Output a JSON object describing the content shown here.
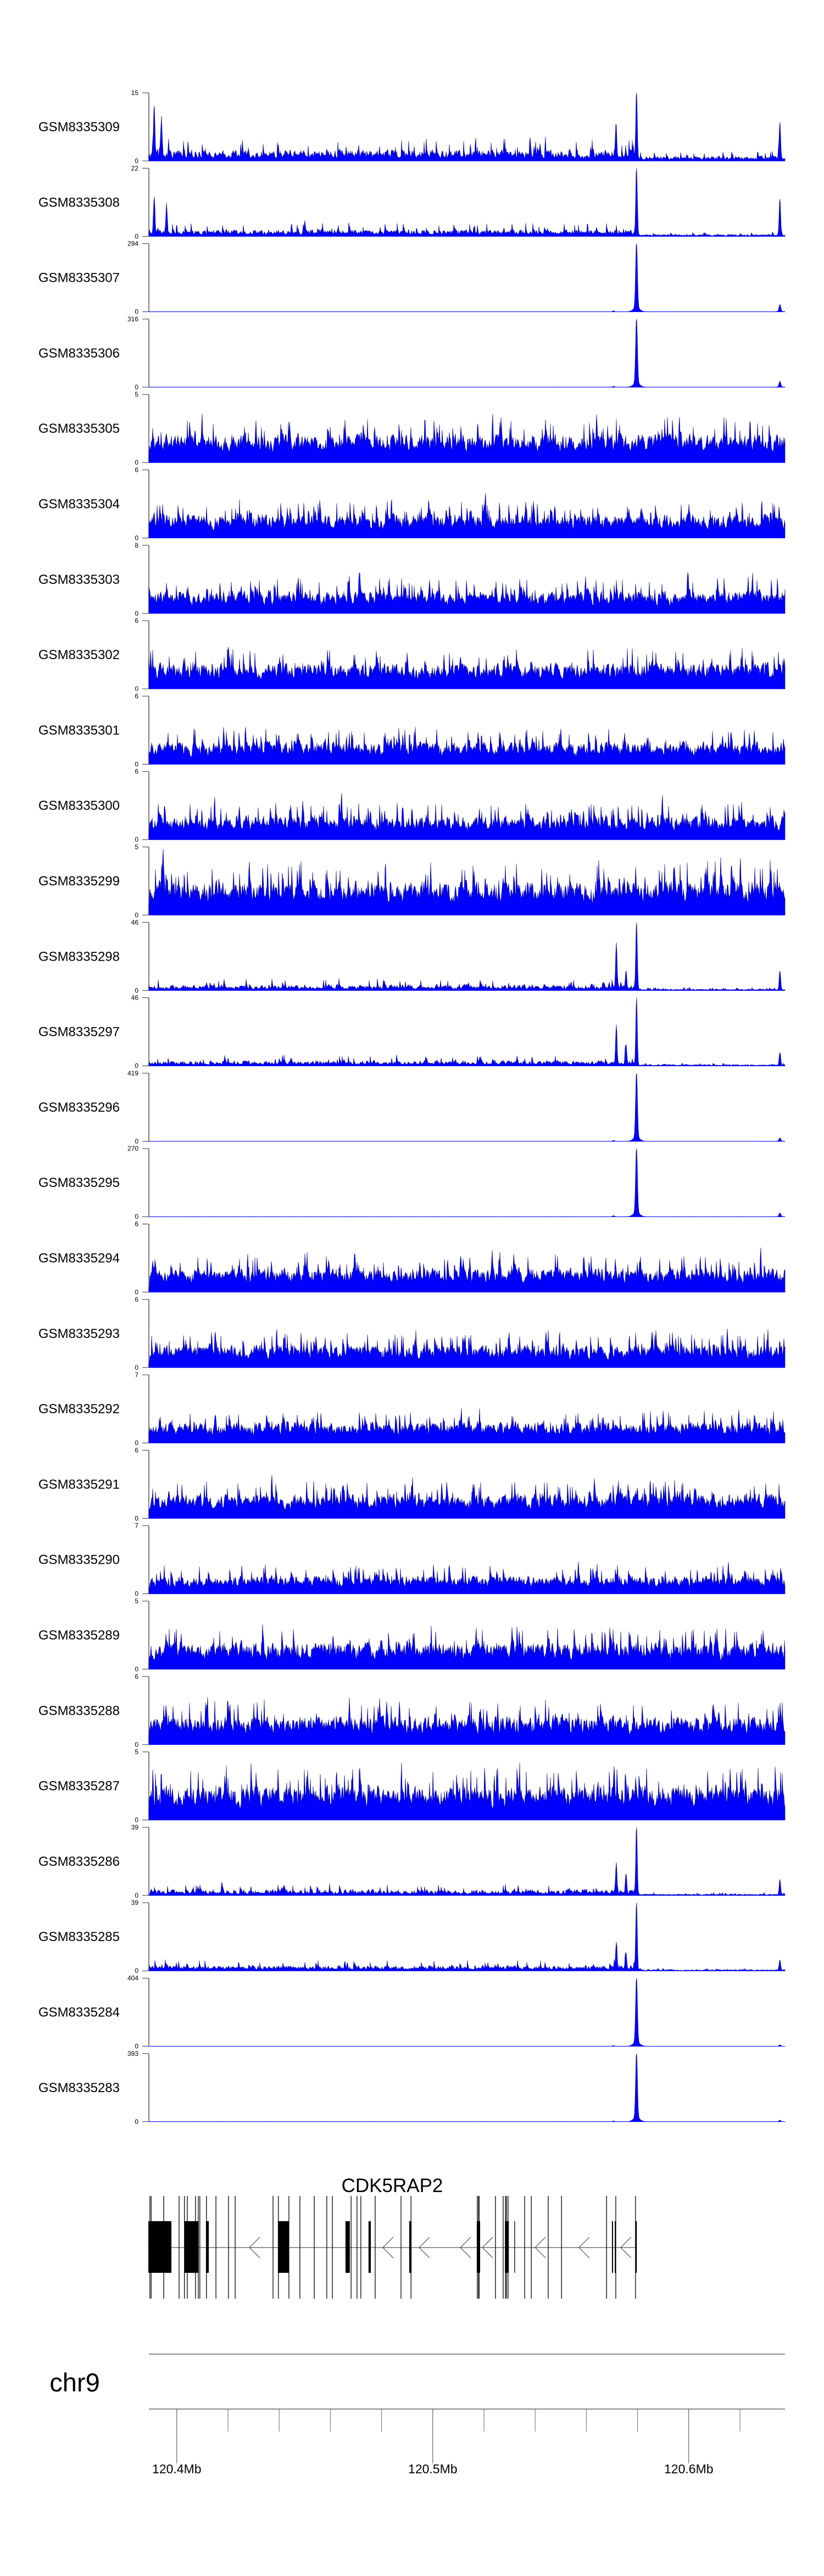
{
  "chart_data": {
    "type": "area",
    "title": "",
    "xlabel": "",
    "xlim_kb": [
      120389.1,
      120637.6
    ],
    "colors": {
      "fill": "#0000ff",
      "stroke": "#00008b",
      "axis": "#808080",
      "gene": "#000000"
    },
    "tracks": [
      {
        "name": "GSM8335309",
        "ylim": [
          0,
          15
        ],
        "profile": "promoter",
        "background": 2.2,
        "background_after_tss": 1.0,
        "peaks": [
          [
            120579.6,
            15
          ],
          [
            120391.2,
            11
          ],
          [
            120394.0,
            8
          ],
          [
            120571.6,
            7.5
          ],
          [
            120635.6,
            8
          ]
        ]
      },
      {
        "name": "GSM8335308",
        "ylim": [
          0,
          22
        ],
        "profile": "promoter",
        "background": 2.0,
        "background_after_tss": 0.6,
        "peaks": [
          [
            120579.6,
            22
          ],
          [
            120391.2,
            12
          ],
          [
            120396.0,
            9
          ],
          [
            120635.6,
            12
          ]
        ]
      },
      {
        "name": "GSM8335307",
        "ylim": [
          0,
          294
        ],
        "profile": "sharp",
        "background": 0.4,
        "background_after_tss": 0.3,
        "peaks": [
          [
            120579.6,
            294
          ],
          [
            120570.6,
            4
          ],
          [
            120635.6,
            30
          ]
        ]
      },
      {
        "name": "GSM8335306",
        "ylim": [
          0,
          316
        ],
        "profile": "sharp",
        "background": 0.4,
        "background_after_tss": 0.3,
        "peaks": [
          [
            120579.6,
            316
          ],
          [
            120570.6,
            4
          ],
          [
            120635.6,
            26
          ]
        ]
      },
      {
        "name": "GSM8335305",
        "ylim": [
          0,
          5
        ],
        "profile": "dense",
        "background": 1.6,
        "background_after_tss": 1.6,
        "peaks": []
      },
      {
        "name": "GSM8335304",
        "ylim": [
          0,
          6
        ],
        "profile": "dense",
        "background": 1.6,
        "background_after_tss": 1.6,
        "peaks": []
      },
      {
        "name": "GSM8335303",
        "ylim": [
          0,
          8
        ],
        "profile": "dense",
        "background": 2.0,
        "background_after_tss": 2.0,
        "peaks": []
      },
      {
        "name": "GSM8335302",
        "ylim": [
          0,
          6
        ],
        "profile": "dense",
        "background": 1.7,
        "background_after_tss": 1.7,
        "peaks": []
      },
      {
        "name": "GSM8335301",
        "ylim": [
          0,
          6
        ],
        "profile": "dense",
        "background": 1.5,
        "background_after_tss": 1.5,
        "peaks": []
      },
      {
        "name": "GSM8335300",
        "ylim": [
          0,
          6
        ],
        "profile": "dense",
        "background": 1.6,
        "background_after_tss": 1.6,
        "peaks": []
      },
      {
        "name": "GSM8335299",
        "ylim": [
          0,
          5
        ],
        "profile": "dense",
        "background": 1.9,
        "background_after_tss": 1.9,
        "peaks": []
      },
      {
        "name": "GSM8335298",
        "ylim": [
          0,
          46
        ],
        "profile": "promoter",
        "background": 3.5,
        "background_after_tss": 1.0,
        "peaks": [
          [
            120579.6,
            46
          ],
          [
            120571.7,
            31
          ],
          [
            120575.5,
            12
          ],
          [
            120635.6,
            12
          ]
        ]
      },
      {
        "name": "GSM8335297",
        "ylim": [
          0,
          46
        ],
        "profile": "promoter",
        "background": 3.2,
        "background_after_tss": 0.9,
        "peaks": [
          [
            120579.6,
            46
          ],
          [
            120571.7,
            26
          ],
          [
            120575.5,
            12
          ],
          [
            120635.6,
            9
          ]
        ]
      },
      {
        "name": "GSM8335296",
        "ylim": [
          0,
          419
        ],
        "profile": "sharp",
        "background": 0.5,
        "background_after_tss": 0.3,
        "peaks": [
          [
            120579.6,
            419
          ],
          [
            120570.6,
            5
          ],
          [
            120635.6,
            20
          ]
        ]
      },
      {
        "name": "GSM8335295",
        "ylim": [
          0,
          270
        ],
        "profile": "sharp",
        "background": 0.4,
        "background_after_tss": 0.3,
        "peaks": [
          [
            120579.6,
            270
          ],
          [
            120570.6,
            4
          ],
          [
            120635.6,
            14
          ]
        ]
      },
      {
        "name": "GSM8335294",
        "ylim": [
          0,
          6
        ],
        "profile": "dense",
        "background": 1.6,
        "background_after_tss": 1.6,
        "peaks": []
      },
      {
        "name": "GSM8335293",
        "ylim": [
          0,
          6
        ],
        "profile": "dense",
        "background": 1.5,
        "background_after_tss": 1.5,
        "peaks": []
      },
      {
        "name": "GSM8335292",
        "ylim": [
          0,
          7
        ],
        "profile": "dense",
        "background": 1.6,
        "background_after_tss": 1.6,
        "peaks": []
      },
      {
        "name": "GSM8335291",
        "ylim": [
          0,
          6
        ],
        "profile": "dense",
        "background": 1.6,
        "background_after_tss": 1.6,
        "peaks": []
      },
      {
        "name": "GSM8335290",
        "ylim": [
          0,
          7
        ],
        "profile": "dense",
        "background": 1.4,
        "background_after_tss": 1.4,
        "peaks": []
      },
      {
        "name": "GSM8335289",
        "ylim": [
          0,
          5
        ],
        "profile": "dense",
        "background": 1.5,
        "background_after_tss": 1.5,
        "peaks": []
      },
      {
        "name": "GSM8335288",
        "ylim": [
          0,
          6
        ],
        "profile": "dense",
        "background": 1.9,
        "background_after_tss": 1.9,
        "peaks": []
      },
      {
        "name": "GSM8335287",
        "ylim": [
          0,
          5
        ],
        "profile": "dense",
        "background": 1.9,
        "background_after_tss": 1.9,
        "peaks": []
      },
      {
        "name": "GSM8335286",
        "ylim": [
          0,
          39
        ],
        "profile": "promoter",
        "background": 3.0,
        "background_after_tss": 0.8,
        "peaks": [
          [
            120579.6,
            39
          ],
          [
            120571.7,
            18
          ],
          [
            120575.5,
            10
          ],
          [
            120635.6,
            9
          ]
        ]
      },
      {
        "name": "GSM8335285",
        "ylim": [
          0,
          39
        ],
        "profile": "promoter",
        "background": 2.8,
        "background_after_tss": 0.7,
        "peaks": [
          [
            120579.6,
            39
          ],
          [
            120571.7,
            14
          ],
          [
            120575.5,
            8
          ],
          [
            120635.6,
            6
          ]
        ]
      },
      {
        "name": "GSM8335284",
        "ylim": [
          0,
          404
        ],
        "profile": "sharp",
        "background": 0.4,
        "background_after_tss": 0.3,
        "peaks": [
          [
            120579.6,
            404
          ],
          [
            120570.6,
            4
          ],
          [
            120635.6,
            8
          ]
        ]
      },
      {
        "name": "GSM8335283",
        "ylim": [
          0,
          393
        ],
        "profile": "sharp",
        "background": 0.4,
        "background_after_tss": 0.3,
        "peaks": [
          [
            120579.6,
            393
          ],
          [
            120570.6,
            4
          ],
          [
            120635.6,
            8
          ]
        ]
      }
    ],
    "gene": {
      "name": "CDK5RAP2",
      "strand": "-",
      "start_kb": 120388.9,
      "end_kb": 120579.7,
      "exons_kb": [
        [
          120388.9,
          120397.9
        ],
        [
          120403.0,
          120408.6
        ],
        [
          120411.4,
          120412.5
        ],
        [
          120439.5,
          120443.8
        ],
        [
          120465.9,
          120467.6
        ],
        [
          120474.9,
          120475.8
        ],
        [
          120490.8,
          120491.7
        ],
        [
          120517.2,
          120518.5
        ],
        [
          120528.2,
          120529.7
        ],
        [
          120570.0,
          120570.4
        ],
        [
          120571.1,
          120571.5
        ],
        [
          120579.2,
          120579.7
        ]
      ],
      "short_marks_kb": [
        120532.0
      ],
      "full_height_marks_kb": [
        120389.5,
        120390.0,
        120394.9,
        120400.9,
        120403.0,
        120404.1,
        120407.3,
        120408.4,
        120409.0,
        120411.6,
        120415.3,
        120420.2,
        120422.8,
        120437.6,
        120439.7,
        120443.8,
        120448.1,
        120453.7,
        120458.6,
        120460.8,
        120468.1,
        120470.4,
        120471.9,
        120477.5,
        120487.6,
        120491.5,
        120517.4,
        120517.9,
        120518.1,
        120524.5,
        120527.5,
        120528.4,
        120528.8,
        120529.4,
        120535.9,
        120538.5,
        120545.1,
        120550.3,
        120567.9,
        120571.5,
        120579.2
      ],
      "direction_arrows_kb": [
        120428.4,
        120480.5,
        120494.7,
        120510.8,
        120519.4,
        120540.0,
        120557.1,
        120573.4
      ]
    },
    "axis": {
      "chromosome": "chr9",
      "major_ticks": [
        {
          "pos_kb": 120400,
          "label": "120.4Mb"
        },
        {
          "pos_kb": 120500,
          "label": "120.5Mb"
        },
        {
          "pos_kb": 120600,
          "label": "120.6Mb"
        }
      ],
      "minor_ticks_kb": [
        120420,
        120440,
        120460,
        120480,
        120520,
        120540,
        120560,
        120580,
        120620
      ]
    }
  }
}
